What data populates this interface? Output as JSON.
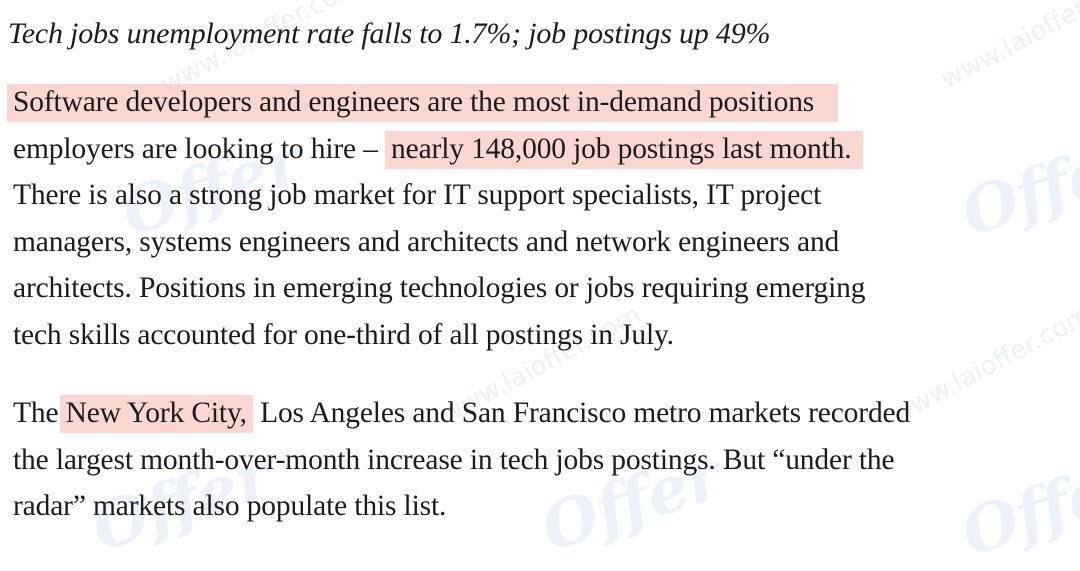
{
  "article": {
    "subhead": "Tech jobs unemployment rate falls to 1.7%; job postings up 49%",
    "paragraph1": {
      "line1": "Software developers and engineers are the most in-demand positions",
      "line2_plain": "employers are looking to hire – ",
      "line2_highlight": "nearly 148,000 job postings last month.",
      "line3": "There is also a strong job market for IT support specialists, IT project",
      "line4": "managers, systems engineers and architects and network engineers and",
      "line5": "architects. Positions in emerging technologies or jobs requiring emerging",
      "line6": "tech skills accounted for one-third of all postings in July."
    },
    "paragraph2": {
      "line1_pre": "The ",
      "line1_highlight": "New York City,",
      "line1_post": " Los Angeles and San Francisco metro markets recorded",
      "line2": "the largest month-over-month increase in tech jobs postings. But “under the",
      "line3": "radar” markets also populate this list."
    }
  },
  "watermark": {
    "url_text": "www.laioffer.com",
    "logo_text": "Offer"
  },
  "colors": {
    "highlight": "#fabeb4",
    "text": "#1c1c1c",
    "watermark": "#96afd2"
  }
}
